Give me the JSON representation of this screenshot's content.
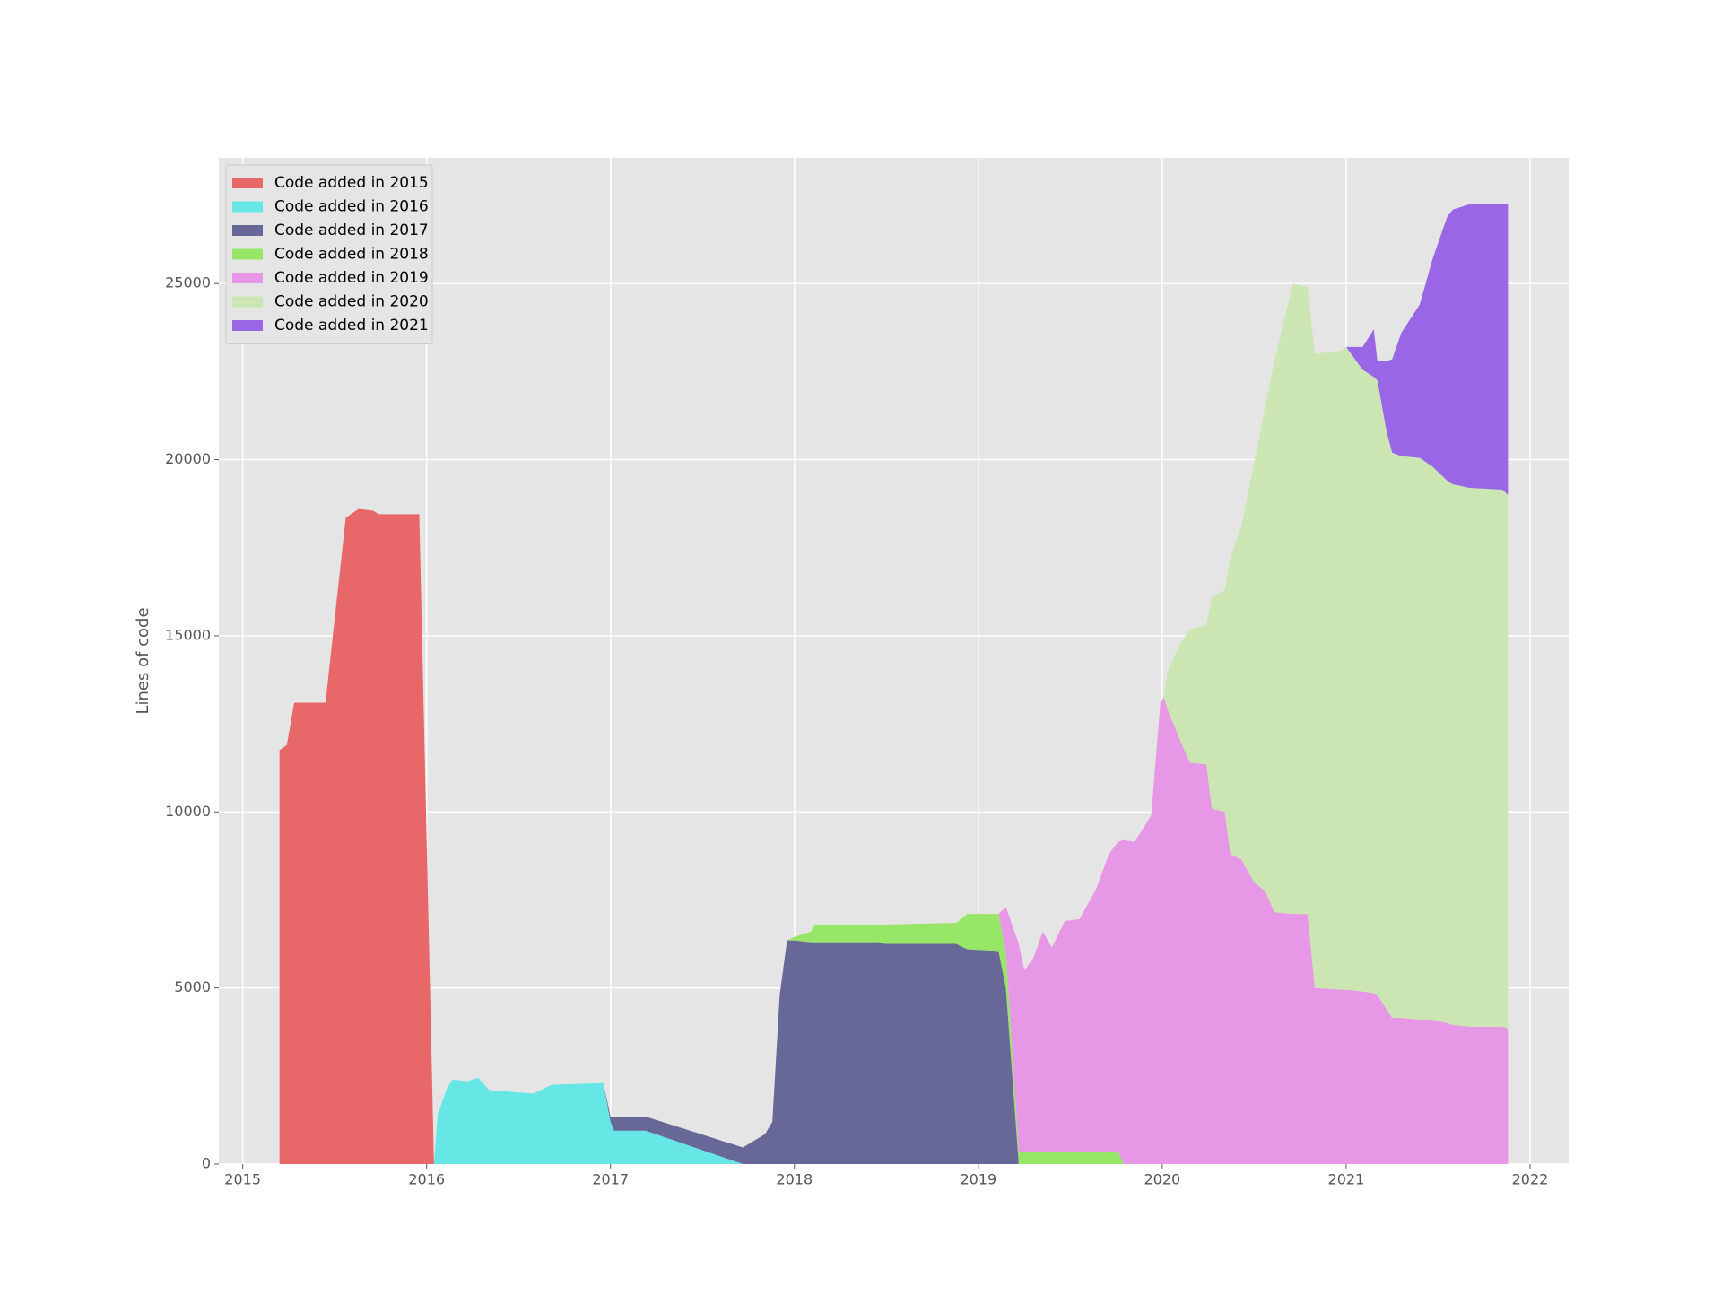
{
  "chart_data": {
    "type": "stackplot",
    "y_label": "Lines of code",
    "x": [
      2015.2,
      2015.24,
      2015.28,
      2015.45,
      2015.56,
      2015.63,
      2015.71,
      2015.74,
      2015.96,
      2016.04,
      2016.06,
      2016.11,
      2016.14,
      2016.22,
      2016.28,
      2016.34,
      2016.58,
      2016.68,
      2016.96,
      2017.0,
      2017.02,
      2017.19,
      2017.72,
      2017.84,
      2017.88,
      2017.92,
      2017.96,
      2018.0,
      2018.09,
      2018.11,
      2018.46,
      2018.49,
      2018.88,
      2018.94,
      2019.11,
      2019.15,
      2019.22,
      2019.25,
      2019.3,
      2019.35,
      2019.4,
      2019.47,
      2019.55,
      2019.64,
      2019.71,
      2019.76,
      2019.79,
      2019.85,
      2019.94,
      2019.99,
      2020.01,
      2020.03,
      2020.1,
      2020.15,
      2020.24,
      2020.27,
      2020.34,
      2020.37,
      2020.43,
      2020.5,
      2020.56,
      2020.61,
      2020.71,
      2020.79,
      2020.83,
      2020.97,
      2021.0,
      2021.09,
      2021.15,
      2021.17,
      2021.22,
      2021.25,
      2021.3,
      2021.4,
      2021.47,
      2021.55,
      2021.58,
      2021.67,
      2021.85,
      2021.88
    ],
    "series": [
      {
        "name": "Code added in 2015",
        "color": "#e8686a",
        "values": [
          11750,
          11900,
          13100,
          13100,
          18350,
          18600,
          18550,
          18450,
          18450,
          0,
          0,
          0,
          0,
          0,
          0,
          0,
          0,
          0,
          0,
          0,
          0,
          0,
          0,
          0,
          0,
          0,
          0,
          0,
          0,
          0,
          0,
          0,
          0,
          0,
          0,
          0,
          0,
          0,
          0,
          0,
          0,
          0,
          0,
          0,
          0,
          0,
          0,
          0,
          0,
          0,
          0,
          0,
          0,
          0,
          0,
          0,
          0,
          0,
          0,
          0,
          0,
          0,
          0,
          0,
          0,
          0,
          0,
          0,
          0,
          0,
          0,
          0,
          0,
          0,
          0,
          0,
          0,
          0,
          0,
          0
        ]
      },
      {
        "name": "Code added in 2016",
        "color": "#67e6e6",
        "values": [
          0,
          0,
          0,
          0,
          0,
          0,
          0,
          0,
          0,
          0,
          1400,
          2150,
          2400,
          2350,
          2450,
          2100,
          2000,
          2250,
          2300,
          1200,
          950,
          950,
          0,
          0,
          0,
          0,
          0,
          0,
          0,
          0,
          0,
          0,
          0,
          0,
          0,
          0,
          0,
          0,
          0,
          0,
          0,
          0,
          0,
          0,
          0,
          0,
          0,
          0,
          0,
          0,
          0,
          0,
          0,
          0,
          0,
          0,
          0,
          0,
          0,
          0,
          0,
          0,
          0,
          0,
          0,
          0,
          0,
          0,
          0,
          0,
          0,
          0,
          0,
          0,
          0,
          0,
          0,
          0,
          0,
          0
        ]
      },
      {
        "name": "Code added in 2017",
        "color": "#676798",
        "values": [
          0,
          0,
          0,
          0,
          0,
          0,
          0,
          0,
          0,
          0,
          0,
          0,
          0,
          0,
          0,
          0,
          0,
          0,
          0,
          150,
          380,
          400,
          470,
          850,
          1200,
          4800,
          6350,
          6350,
          6300,
          6300,
          6300,
          6250,
          6250,
          6100,
          6050,
          5000,
          0,
          0,
          0,
          0,
          0,
          0,
          0,
          0,
          0,
          0,
          0,
          0,
          0,
          0,
          0,
          0,
          0,
          0,
          0,
          0,
          0,
          0,
          0,
          0,
          0,
          0,
          0,
          0,
          0,
          0,
          0,
          0,
          0,
          0,
          0,
          0,
          0,
          0,
          0,
          0,
          0,
          0,
          0,
          0
        ]
      },
      {
        "name": "Code added in 2018",
        "color": "#98e667",
        "values": [
          0,
          0,
          0,
          0,
          0,
          0,
          0,
          0,
          0,
          0,
          0,
          0,
          0,
          0,
          0,
          0,
          0,
          0,
          0,
          0,
          0,
          0,
          0,
          0,
          0,
          0,
          0,
          100,
          300,
          500,
          500,
          550,
          600,
          1000,
          1050,
          1000,
          350,
          350,
          350,
          350,
          350,
          350,
          350,
          350,
          350,
          350,
          0,
          0,
          0,
          0,
          0,
          0,
          0,
          0,
          0,
          0,
          0,
          0,
          0,
          0,
          0,
          0,
          0,
          0,
          0,
          0,
          0,
          0,
          0,
          0,
          0,
          0,
          0,
          0,
          0,
          0,
          0,
          0,
          0,
          0
        ]
      },
      {
        "name": "Code added in 2019",
        "color": "#e698e6",
        "values": [
          0,
          0,
          0,
          0,
          0,
          0,
          0,
          0,
          0,
          0,
          0,
          0,
          0,
          0,
          0,
          0,
          0,
          0,
          0,
          0,
          0,
          0,
          0,
          0,
          0,
          0,
          0,
          0,
          0,
          0,
          0,
          0,
          0,
          0,
          0,
          1300,
          5900,
          5150,
          5500,
          6250,
          5800,
          6550,
          6600,
          7450,
          8450,
          8800,
          9200,
          9150,
          9900,
          13100,
          13250,
          12900,
          12000,
          11400,
          11350,
          10100,
          10000,
          8800,
          8650,
          8000,
          7750,
          7150,
          7100,
          7100,
          5000,
          4950,
          4950,
          4900,
          4850,
          4800,
          4400,
          4150,
          4150,
          4100,
          4100,
          4000,
          3950,
          3900,
          3900,
          3850
        ]
      },
      {
        "name": "Code added in 2020",
        "color": "#cce6b3",
        "values": [
          0,
          0,
          0,
          0,
          0,
          0,
          0,
          0,
          0,
          0,
          0,
          0,
          0,
          0,
          0,
          0,
          0,
          0,
          0,
          0,
          0,
          0,
          0,
          0,
          0,
          0,
          0,
          0,
          0,
          0,
          0,
          0,
          0,
          0,
          0,
          0,
          0,
          0,
          0,
          0,
          0,
          0,
          0,
          0,
          0,
          0,
          0,
          0,
          0,
          0,
          50,
          1100,
          2800,
          3800,
          3950,
          6000,
          6300,
          8400,
          9450,
          11900,
          13750,
          15650,
          17900,
          17800,
          18000,
          18150,
          18250,
          17650,
          17500,
          17450,
          16400,
          16050,
          15950,
          15950,
          15700,
          15400,
          15350,
          15300,
          15250,
          15150
        ]
      },
      {
        "name": "Code added in 2021",
        "color": "#9967e6",
        "values": [
          0,
          0,
          0,
          0,
          0,
          0,
          0,
          0,
          0,
          0,
          0,
          0,
          0,
          0,
          0,
          0,
          0,
          0,
          0,
          0,
          0,
          0,
          0,
          0,
          0,
          0,
          0,
          0,
          0,
          0,
          0,
          0,
          0,
          0,
          0,
          0,
          0,
          0,
          0,
          0,
          0,
          0,
          0,
          0,
          0,
          0,
          0,
          0,
          0,
          0,
          0,
          0,
          0,
          0,
          0,
          0,
          0,
          0,
          0,
          0,
          0,
          0,
          0,
          0,
          0,
          0,
          0,
          650,
          1350,
          550,
          2000,
          2650,
          3500,
          4350,
          5900,
          7500,
          7800,
          8050,
          8100,
          8250
        ]
      }
    ],
    "xlim": [
      2014.87,
      2022.21
    ],
    "xticks": [
      2015,
      2016,
      2017,
      2018,
      2019,
      2020,
      2021,
      2022
    ],
    "ylim": [
      0,
      28570
    ],
    "yticks": [
      0,
      5000,
      10000,
      15000,
      20000,
      25000
    ],
    "grid": true,
    "legend": "upper left"
  }
}
